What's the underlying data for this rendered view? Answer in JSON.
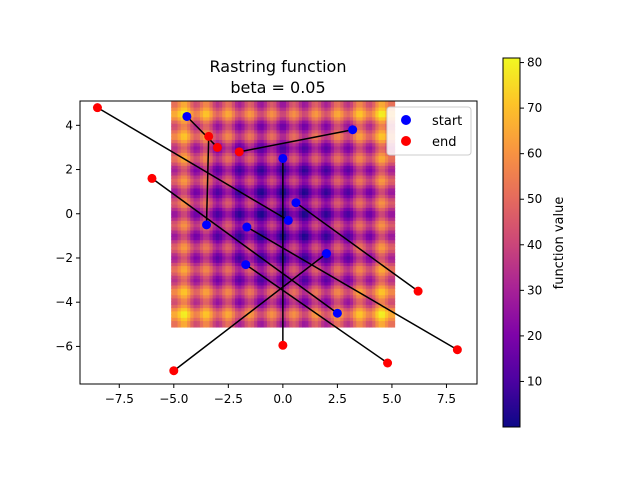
{
  "chart_data": {
    "type": "scatter",
    "title_line1": "Rastring function",
    "title_line2": "beta = 0.05",
    "xlabel": "",
    "ylabel": "",
    "xlim": [
      -9.3,
      8.9
    ],
    "ylim": [
      -7.7,
      5.1
    ],
    "xticks": [
      -7.5,
      -5.0,
      -2.5,
      0.0,
      2.5,
      5.0,
      7.5
    ],
    "xtick_labels": [
      "−7.5",
      "−5.0",
      "−2.5",
      "0.0",
      "2.5",
      "5.0",
      "7.5"
    ],
    "yticks": [
      -6,
      -4,
      -2,
      0,
      2,
      4
    ],
    "ytick_labels": [
      "−6",
      "−4",
      "−2",
      "0",
      "2",
      "4"
    ],
    "heatmap": {
      "function": "rastrigin",
      "x_range": [
        -5.12,
        5.12
      ],
      "y_range": [
        -5.12,
        5.12
      ],
      "colormap": "plasma"
    },
    "series": [
      {
        "name": "start",
        "color": "#0000ff"
      },
      {
        "name": "end",
        "color": "#ff0000"
      }
    ],
    "pairs": [
      {
        "start": [
          -4.4,
          4.4
        ],
        "end": [
          -3.0,
          3.0
        ]
      },
      {
        "start": [
          3.2,
          3.8
        ],
        "end": [
          -2.0,
          2.8
        ]
      },
      {
        "start": [
          0.0,
          2.5
        ],
        "end": [
          0.0,
          -5.95
        ]
      },
      {
        "start": [
          0.25,
          -0.3
        ],
        "end": [
          -8.5,
          4.8
        ]
      },
      {
        "start": [
          0.6,
          0.5
        ],
        "end": [
          6.2,
          -3.5
        ]
      },
      {
        "start": [
          -3.5,
          -0.5
        ],
        "end": [
          -3.4,
          3.5
        ]
      },
      {
        "start": [
          -1.65,
          -0.6
        ],
        "end": [
          8.0,
          -6.15
        ]
      },
      {
        "start": [
          -1.7,
          -2.3
        ],
        "end": [
          4.8,
          -6.75
        ]
      },
      {
        "start": [
          2.5,
          -4.5
        ],
        "end": [
          -6.0,
          1.6
        ]
      },
      {
        "start": [
          2.0,
          -1.8
        ],
        "end": [
          -5.0,
          -7.1
        ]
      }
    ],
    "legend_position": "upper right",
    "colorbar": {
      "label": "function value",
      "range": [
        0,
        81
      ],
      "ticks": [
        10,
        20,
        30,
        40,
        50,
        60,
        70,
        80
      ],
      "tick_labels": [
        "10",
        "20",
        "30",
        "40",
        "50",
        "60",
        "70",
        "80"
      ]
    }
  }
}
